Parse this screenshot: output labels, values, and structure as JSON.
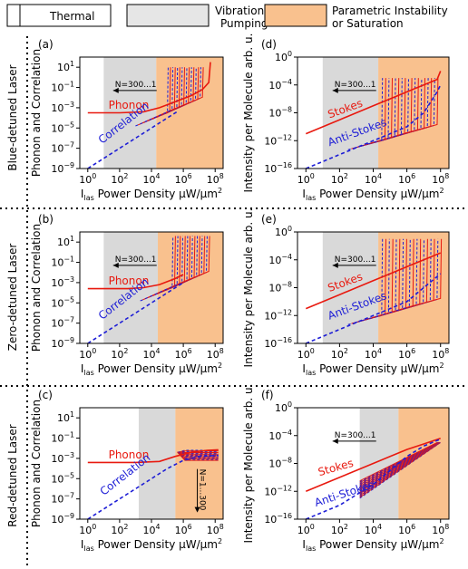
{
  "legend": [
    {
      "label": "Thermal",
      "color": "#ffffff"
    },
    {
      "label": "Vibrational\nPumping",
      "color": "#e6e6e6"
    },
    {
      "label": "Parametric Instability\nor Saturation",
      "color": "#f9c18e"
    }
  ],
  "row_labels": [
    "Blue-detuned Laser",
    "Zero-detuned Laser",
    "Red-detuned Laser"
  ],
  "colors": {
    "red": "#e8190f",
    "blue": "#1d1dd6",
    "grey": "#d9d9d9",
    "orange": "#f9c18e"
  },
  "chart_data": [
    {
      "id": "a",
      "panel_label": "(a)",
      "type": "line",
      "xlabel": "I_las Power Density μW/μm²",
      "ylabel": "Phonon and Correlation",
      "xlim_log10": [
        -0.5,
        8.5
      ],
      "ylim_log10": [
        -9,
        2
      ],
      "xticks": [
        "10^0",
        "10^2",
        "10^4",
        "10^6",
        "10^8"
      ],
      "yticks": [
        "10^-9",
        "10^-7",
        "10^-5",
        "10^-3",
        "10^-1",
        "10^1"
      ],
      "regions_log10": {
        "pumping": [
          1,
          4.3
        ],
        "instability": [
          4.3,
          8.5
        ]
      },
      "annotation": {
        "text": "N=300...1",
        "arrow": "left"
      },
      "series": [
        {
          "name": "Phonon",
          "color": "red",
          "points": [
            [
              0,
              -3.5
            ],
            [
              2,
              -3.5
            ],
            [
              3.5,
              -3.4
            ],
            [
              4.5,
              -3.0
            ],
            [
              5.5,
              -2.4
            ],
            [
              6.5,
              -1.8
            ],
            [
              7.2,
              -1.2
            ],
            [
              7.6,
              -0.5
            ],
            [
              7.7,
              1.5
            ]
          ]
        },
        {
          "name": "Correlation",
          "color": "blue",
          "style": "dashed",
          "points": [
            [
              0,
              -9
            ],
            [
              2,
              -7
            ],
            [
              4,
              -5
            ],
            [
              5,
              -4
            ],
            [
              5.7,
              -3.3
            ]
          ]
        }
      ],
      "fan": {
        "x_from": 5.0,
        "x_to": 7.2,
        "count": 16,
        "y_base": -3.5,
        "y_top": 1.0
      }
    },
    {
      "id": "b",
      "panel_label": "(b)",
      "type": "line",
      "xlabel": "I_las Power Density μW/μm²",
      "ylabel": "Phonon and Correlation",
      "xlim_log10": [
        -0.5,
        8.5
      ],
      "ylim_log10": [
        -9,
        2
      ],
      "xticks": [
        "10^0",
        "10^2",
        "10^4",
        "10^6",
        "10^8"
      ],
      "yticks": [
        "10^-9",
        "10^-7",
        "10^-5",
        "10^-3",
        "10^-1",
        "10^1"
      ],
      "regions_log10": {
        "pumping": [
          1,
          4.4
        ],
        "instability": [
          4.4,
          8.5
        ]
      },
      "annotation": {
        "text": "N=300...1",
        "arrow": "left"
      },
      "series": [
        {
          "name": "Phonon",
          "color": "red",
          "points": [
            [
              0,
              -3.6
            ],
            [
              2.5,
              -3.6
            ],
            [
              3.5,
              -3.5
            ],
            [
              4.5,
              -3.2
            ],
            [
              5.5,
              -2.6
            ],
            [
              6,
              -2.2
            ]
          ]
        },
        {
          "name": "Correlation",
          "color": "blue",
          "style": "dashed",
          "points": [
            [
              0,
              -9
            ],
            [
              2,
              -7
            ],
            [
              4,
              -5
            ],
            [
              5,
              -4
            ],
            [
              6,
              -3
            ]
          ]
        }
      ],
      "fan": {
        "x_from": 5.3,
        "x_to": 7.6,
        "count": 16,
        "y_base": -3.5,
        "y_top": 1.6
      }
    },
    {
      "id": "c",
      "panel_label": "(c)",
      "type": "line",
      "xlabel": "I_las Power Density μW/μm²",
      "ylabel": "Phonon and Correlation",
      "xlim_log10": [
        -0.5,
        8.5
      ],
      "ylim_log10": [
        -9,
        2
      ],
      "xticks": [
        "10^0",
        "10^2",
        "10^4",
        "10^6",
        "10^8"
      ],
      "yticks": [
        "10^-9",
        "10^-7",
        "10^-5",
        "10^-3",
        "10^-1",
        "10^1"
      ],
      "regions_log10": {
        "pumping": [
          3.2,
          5.5
        ],
        "instability": [
          5.5,
          8.5
        ]
      },
      "annotation": {
        "text": "N=1...300",
        "arrow": "down"
      },
      "series": [
        {
          "name": "Phonon",
          "color": "red",
          "points": [
            [
              0,
              -3.4
            ],
            [
              3,
              -3.4
            ],
            [
              4.5,
              -3.3
            ],
            [
              5.5,
              -2.8
            ],
            [
              6.5,
              -2.4
            ],
            [
              7.5,
              -2.2
            ],
            [
              8.2,
              -2.15
            ]
          ]
        },
        {
          "name": "Correlation",
          "color": "blue",
          "style": "dashed",
          "points": [
            [
              0,
              -9
            ],
            [
              2,
              -7
            ],
            [
              4,
              -5
            ],
            [
              5,
              -4
            ],
            [
              6,
              -3.2
            ],
            [
              7,
              -2.8
            ],
            [
              8.2,
              -2.7
            ]
          ]
        }
      ],
      "fan": {
        "x_from": 5.5,
        "x_to": 8.2,
        "count": 14,
        "y_base": -3.2,
        "y_top": -2.2,
        "down": true
      }
    },
    {
      "id": "d",
      "panel_label": "(d)",
      "type": "line",
      "xlabel": "I_las Power Density μW/μm²",
      "ylabel": "Intensity per Molecule arb. u.",
      "xlim_log10": [
        -0.5,
        8.5
      ],
      "ylim_log10": [
        -16,
        0
      ],
      "xticks": [
        "10^0",
        "10^2",
        "10^4",
        "10^6",
        "10^8"
      ],
      "yticks": [
        "10^-16",
        "10^-12",
        "10^-8",
        "10^-4",
        "10^0"
      ],
      "regions_log10": {
        "pumping": [
          1,
          4.3
        ],
        "instability": [
          4.3,
          8.5
        ]
      },
      "annotation": {
        "text": "N=300...1",
        "arrow": "left"
      },
      "series": [
        {
          "name": "Stokes",
          "color": "red",
          "points": [
            [
              0,
              -11
            ],
            [
              2,
              -9
            ],
            [
              4,
              -7
            ],
            [
              5,
              -6
            ],
            [
              6,
              -5
            ],
            [
              7,
              -4
            ],
            [
              7.8,
              -3.2
            ],
            [
              8,
              -2
            ]
          ]
        },
        {
          "name": "Anti-Stokes",
          "color": "blue",
          "style": "dashed",
          "points": [
            [
              0,
              -16
            ],
            [
              2,
              -14
            ],
            [
              4,
              -12
            ],
            [
              5,
              -11
            ],
            [
              6,
              -10
            ],
            [
              7,
              -8
            ],
            [
              7.8,
              -5
            ],
            [
              8,
              -4
            ]
          ]
        }
      ],
      "fan": {
        "x_from": 4.5,
        "x_to": 7.8,
        "count": 18,
        "y_base": -12,
        "y_top": -3
      }
    },
    {
      "id": "e",
      "panel_label": "(e)",
      "type": "line",
      "xlabel": "I_las Power Density μW/μm²",
      "ylabel": "Intensity per Molecule arb. u.",
      "xlim_log10": [
        -0.5,
        8.5
      ],
      "ylim_log10": [
        -16,
        0
      ],
      "xticks": [
        "10^0",
        "10^2",
        "10^4",
        "10^6",
        "10^8"
      ],
      "yticks": [
        "10^-16",
        "10^-12",
        "10^-8",
        "10^-4",
        "10^0"
      ],
      "regions_log10": {
        "pumping": [
          1,
          4.3
        ],
        "instability": [
          4.3,
          8.5
        ]
      },
      "annotation": {
        "text": "N=300...1",
        "arrow": "left"
      },
      "series": [
        {
          "name": "Stokes",
          "color": "red",
          "points": [
            [
              0,
              -11
            ],
            [
              2,
              -9
            ],
            [
              4,
              -7
            ],
            [
              5,
              -6
            ],
            [
              6,
              -5
            ],
            [
              7,
              -4
            ],
            [
              8,
              -3
            ]
          ]
        },
        {
          "name": "Anti-Stokes",
          "color": "blue",
          "style": "dashed",
          "points": [
            [
              0,
              -16
            ],
            [
              2,
              -14
            ],
            [
              4,
              -12
            ],
            [
              5,
              -11
            ],
            [
              6,
              -10
            ],
            [
              7,
              -8
            ],
            [
              8,
              -6
            ]
          ]
        }
      ],
      "fan": {
        "x_from": 4.5,
        "x_to": 8.0,
        "count": 18,
        "y_base": -12,
        "y_top": -1
      }
    },
    {
      "id": "f",
      "panel_label": "(f)",
      "type": "line",
      "xlabel": "I_las Power Density μW/μm²",
      "ylabel": "Intensity per Molecule arb. u.",
      "xlim_log10": [
        -0.5,
        8.5
      ],
      "ylim_log10": [
        -16,
        0
      ],
      "xticks": [
        "10^0",
        "10^2",
        "10^4",
        "10^6",
        "10^8"
      ],
      "yticks": [
        "10^-16",
        "10^-12",
        "10^-8",
        "10^-4",
        "10^0"
      ],
      "regions_log10": {
        "pumping": [
          3.2,
          5.5
        ],
        "instability": [
          5.5,
          8.5
        ]
      },
      "annotation": {
        "text": "N=300...1",
        "arrow": "left"
      },
      "series": [
        {
          "name": "Stokes",
          "color": "red",
          "points": [
            [
              0,
              -12
            ],
            [
              2,
              -10
            ],
            [
              4,
              -8
            ],
            [
              5,
              -7
            ],
            [
              6,
              -6
            ],
            [
              7,
              -5.2
            ],
            [
              8,
              -4.4
            ]
          ]
        },
        {
          "name": "Anti-Stokes",
          "color": "blue",
          "style": "dashed",
          "points": [
            [
              0,
              -16
            ],
            [
              2,
              -14
            ],
            [
              3,
              -12.5
            ],
            [
              4,
              -11
            ],
            [
              5,
              -9
            ],
            [
              6,
              -7
            ],
            [
              7,
              -5.5
            ],
            [
              8,
              -4.5
            ]
          ]
        }
      ],
      "fan": {
        "x_from": 3.2,
        "x_to": 8.0,
        "count": 20,
        "y_base": -13,
        "y_top": -5,
        "band": true
      }
    }
  ]
}
